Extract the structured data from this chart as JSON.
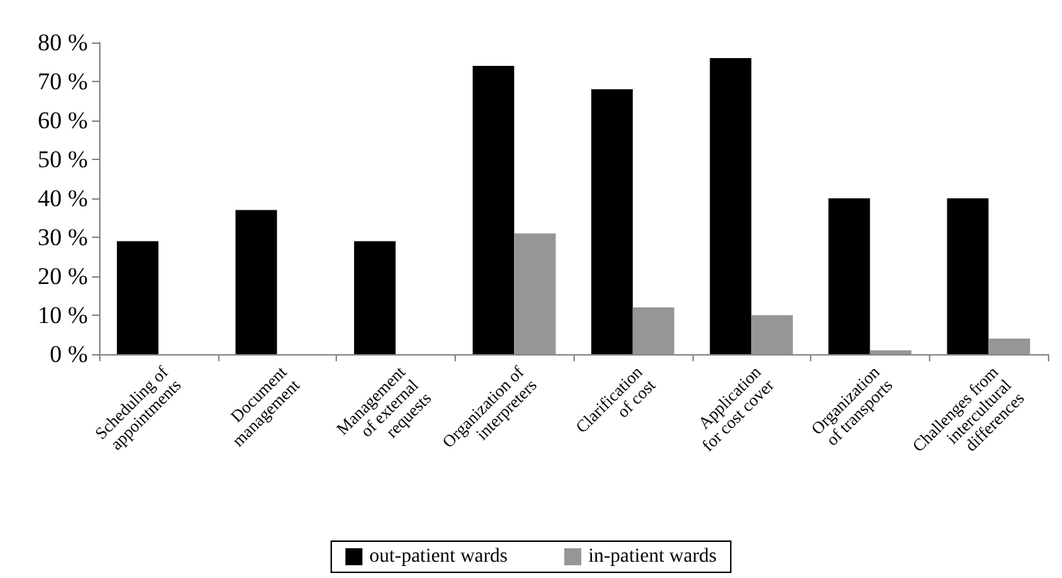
{
  "chart_data": {
    "type": "bar",
    "categories": [
      "Scheduling of\nappointments",
      "Document\nmanagement",
      "Management\nof external\nrequests",
      "Organization of\ninterpreters",
      "Clarification\nof cost",
      "Application\nfor cost cover",
      "Organization\nof transports",
      "Challenges from\nintercultural\ndifferences"
    ],
    "series": [
      {
        "name": "out-patient wards",
        "color": "#000000",
        "values": [
          29,
          37,
          29,
          74,
          68,
          76,
          40,
          40
        ]
      },
      {
        "name": "in-patient wards",
        "color": "#969696",
        "values": [
          0,
          0,
          0,
          31,
          12,
          10,
          1,
          4
        ]
      }
    ],
    "ylim": [
      0,
      80
    ],
    "yticks": [
      {
        "value": 0,
        "label": "0 %"
      },
      {
        "value": 10,
        "label": "10 %"
      },
      {
        "value": 20,
        "label": "20 %"
      },
      {
        "value": 30,
        "label": "30 %"
      },
      {
        "value": 40,
        "label": "40 %"
      },
      {
        "value": 50,
        "label": "50 %"
      },
      {
        "value": 60,
        "label": "60 %"
      },
      {
        "value": 70,
        "label": "70 %"
      },
      {
        "value": 80,
        "label": "80 %"
      }
    ],
    "grid": false,
    "legend": "bottom"
  }
}
